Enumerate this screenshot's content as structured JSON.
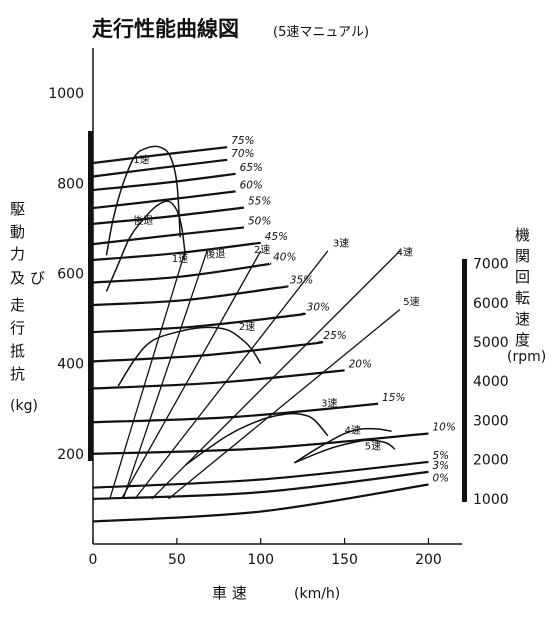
{
  "title": "走行性能曲線図",
  "subtitle": "(5速マニュアル)",
  "chart_data": {
    "type": "line",
    "title": "走行性能曲線図",
    "subtitle": "(5速マニュアル)",
    "xlabel": "車 速 (km/h)",
    "xlabel_main": "車 速",
    "xlabel_unit": "(km/h)",
    "ylabel_left_chars": [
      "駆",
      "動",
      "力",
      "及",
      "び",
      "走",
      "行",
      "抵",
      "抗"
    ],
    "ylabel_left_unit": "(kg)",
    "ylabel_right_chars": [
      "機",
      "関",
      "回",
      "転",
      "速",
      "度"
    ],
    "ylabel_right_unit": "(rpm)",
    "xlim": [
      0,
      220
    ],
    "ylim": [
      0,
      1100
    ],
    "xticks": [
      "0",
      "50",
      "100",
      "150",
      "200"
    ],
    "xtick_values": [
      0,
      50,
      100,
      150,
      200
    ],
    "yticks": [
      "200",
      "400",
      "600",
      "800",
      "1000"
    ],
    "ytick_values": [
      200,
      400,
      600,
      800,
      1000
    ],
    "rpm_ticks": [
      "1000",
      "2000",
      "3000",
      "4000",
      "5000",
      "6000",
      "7000"
    ],
    "rpm_tick_values": [
      1000,
      2000,
      3000,
      4000,
      5000,
      6000,
      7000
    ],
    "rpm_axis_map": {
      "rpm_min": 1000,
      "y_at_min": 100,
      "rpm_max": 7000,
      "y_at_max": 622
    },
    "grid": false,
    "gradient_resistance": [
      {
        "label": "75%",
        "x": [
          0,
          40,
          80
        ],
        "y": [
          845,
          863,
          880
        ]
      },
      {
        "label": "70%",
        "x": [
          0,
          40,
          80
        ],
        "y": [
          815,
          834,
          852
        ]
      },
      {
        "label": "65%",
        "x": [
          0,
          45,
          85
        ],
        "y": [
          785,
          802,
          821
        ]
      },
      {
        "label": "60%",
        "x": [
          0,
          45,
          85
        ],
        "y": [
          745,
          764,
          782
        ]
      },
      {
        "label": "55%",
        "x": [
          0,
          45,
          90
        ],
        "y": [
          710,
          726,
          746
        ]
      },
      {
        "label": "50%",
        "x": [
          0,
          45,
          90
        ],
        "y": [
          665,
          684,
          702
        ]
      },
      {
        "label": "45%",
        "x": [
          0,
          50,
          100
        ],
        "y": [
          630,
          645,
          668
        ]
      },
      {
        "label": "40%",
        "x": [
          0,
          50,
          100,
          105
        ],
        "y": [
          580,
          592,
          618,
          622
        ]
      },
      {
        "label": "35%",
        "x": [
          0,
          55,
          110,
          115
        ],
        "y": [
          530,
          541,
          568,
          571
        ]
      },
      {
        "label": "30%",
        "x": [
          0,
          60,
          120,
          125
        ],
        "y": [
          470,
          482,
          507,
          511
        ]
      },
      {
        "label": "25%",
        "x": [
          0,
          65,
          130,
          135
        ],
        "y": [
          405,
          418,
          444,
          448
        ]
      },
      {
        "label": "20%",
        "x": [
          0,
          75,
          150
        ],
        "y": [
          345,
          358,
          385
        ]
      },
      {
        "label": "15%",
        "x": [
          0,
          85,
          170
        ],
        "y": [
          270,
          282,
          311
        ]
      },
      {
        "label": "10%",
        "x": [
          0,
          100,
          200
        ],
        "y": [
          200,
          212,
          245
        ]
      },
      {
        "label": "5%",
        "x": [
          0,
          100,
          200
        ],
        "y": [
          125,
          143,
          182
        ]
      },
      {
        "label": "3%",
        "x": [
          0,
          100,
          200
        ],
        "y": [
          100,
          115,
          160
        ]
      },
      {
        "label": "0%",
        "x": [
          0,
          100,
          200
        ],
        "y": [
          50,
          72,
          132
        ]
      }
    ],
    "driving_force": [
      {
        "name": "1速",
        "x": [
          8,
          12,
          18,
          25,
          32,
          40,
          46,
          50,
          52
        ],
        "y": [
          640,
          720,
          800,
          860,
          878,
          880,
          860,
          800,
          680
        ]
      },
      {
        "name": "後退",
        "x": [
          8,
          15,
          22,
          30,
          38,
          45,
          50,
          53,
          55
        ],
        "y": [
          560,
          620,
          680,
          720,
          750,
          760,
          740,
          700,
          640
        ]
      },
      {
        "name": "2速",
        "x": [
          15,
          25,
          35,
          50,
          65,
          80,
          90,
          95,
          100
        ],
        "y": [
          350,
          410,
          450,
          470,
          480,
          475,
          450,
          430,
          400
        ]
      },
      {
        "name": "3速",
        "x": [
          55,
          80,
          100,
          115,
          125,
          132,
          140
        ],
        "y": [
          175,
          240,
          275,
          288,
          287,
          275,
          240
        ]
      },
      {
        "name": "4速",
        "x": [
          120,
          135,
          150,
          160,
          170,
          178
        ],
        "y": [
          180,
          215,
          245,
          255,
          255,
          250
        ]
      },
      {
        "name": "5速",
        "x": [
          120,
          140,
          155,
          165,
          175,
          180
        ],
        "y": [
          180,
          210,
          225,
          230,
          224,
          210
        ]
      }
    ],
    "gear_lines": [
      {
        "name": "1速",
        "x": [
          10,
          55
        ],
        "y": [
          100,
          650
        ]
      },
      {
        "name": "後退",
        "x": [
          18,
          68
        ],
        "y": [
          100,
          650
        ]
      },
      {
        "name": "2速",
        "x": [
          17,
          100
        ],
        "y": [
          100,
          650
        ]
      },
      {
        "name": "3速",
        "x": [
          25,
          140
        ],
        "y": [
          100,
          650
        ]
      },
      {
        "name": "4速",
        "x": [
          35,
          183
        ],
        "y": [
          100,
          650
        ]
      },
      {
        "name": "5速",
        "x": [
          45,
          183
        ],
        "y": [
          100,
          520
        ]
      }
    ],
    "gear_labels": [
      {
        "text": "1速",
        "x": 24,
        "y": 845
      },
      {
        "text": "後退",
        "x": 24,
        "y": 710
      },
      {
        "text": "1速",
        "x": 47,
        "y": 625
      },
      {
        "text": "後退",
        "x": 67,
        "y": 635
      },
      {
        "text": "2速",
        "x": 96,
        "y": 645
      },
      {
        "text": "3速",
        "x": 143,
        "y": 660
      },
      {
        "text": "4速",
        "x": 181,
        "y": 640
      },
      {
        "text": "5速",
        "x": 185,
        "y": 530
      },
      {
        "text": "2速",
        "x": 87,
        "y": 475
      },
      {
        "text": "3速",
        "x": 136,
        "y": 305
      },
      {
        "text": "4速",
        "x": 150,
        "y": 245
      },
      {
        "text": "5速",
        "x": 162,
        "y": 210
      }
    ]
  }
}
